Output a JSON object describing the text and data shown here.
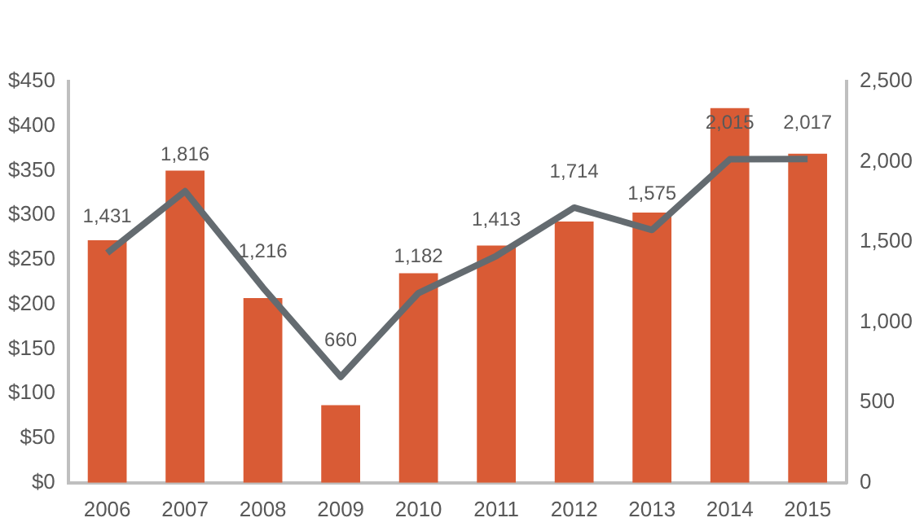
{
  "chart_data": {
    "type": "bar",
    "categories": [
      "2006",
      "2007",
      "2008",
      "2009",
      "2010",
      "2011",
      "2012",
      "2013",
      "2014",
      "2015"
    ],
    "series": [
      {
        "color": "#d95b35",
        "values": [
          272,
          350,
          207,
          87,
          235,
          266,
          293,
          303,
          420,
          369
        ]
      },
      {
        "type": "line",
        "axis": "y2",
        "color": "#646b70",
        "values": [
          1431,
          1816,
          1216,
          660,
          1182,
          1413,
          1714,
          1575,
          2015,
          2017
        ],
        "value_labels": [
          "1,431",
          "1,816",
          "1,216",
          "660",
          "1,182",
          "1,413",
          "1,714",
          "1,575",
          "2,015",
          "2,017"
        ]
      }
    ],
    "ylim": [
      0,
      450
    ],
    "yticks": [
      {
        "value": 0,
        "label": "$0"
      },
      {
        "value": 50,
        "label": "$50"
      },
      {
        "value": 100,
        "label": "$100"
      },
      {
        "value": 150,
        "label": "$150"
      },
      {
        "value": 200,
        "label": "$200"
      },
      {
        "value": 250,
        "label": "$250"
      },
      {
        "value": 300,
        "label": "$300"
      },
      {
        "value": 350,
        "label": "$350"
      },
      {
        "value": 400,
        "label": "$400"
      },
      {
        "value": 450,
        "label": "$450"
      }
    ],
    "y2lim": [
      0,
      2500
    ],
    "y2ticks": [
      0,
      {
        "value": 500,
        "label": "500"
      },
      {
        "value": 1000,
        "label": "1,000"
      },
      {
        "value": 1500,
        "label": "1,500"
      },
      {
        "value": 2000,
        "label": "2,000"
      },
      {
        "value": 2500,
        "label": "2,500"
      }
    ],
    "grid": false,
    "legend": false,
    "marker": "none"
  }
}
